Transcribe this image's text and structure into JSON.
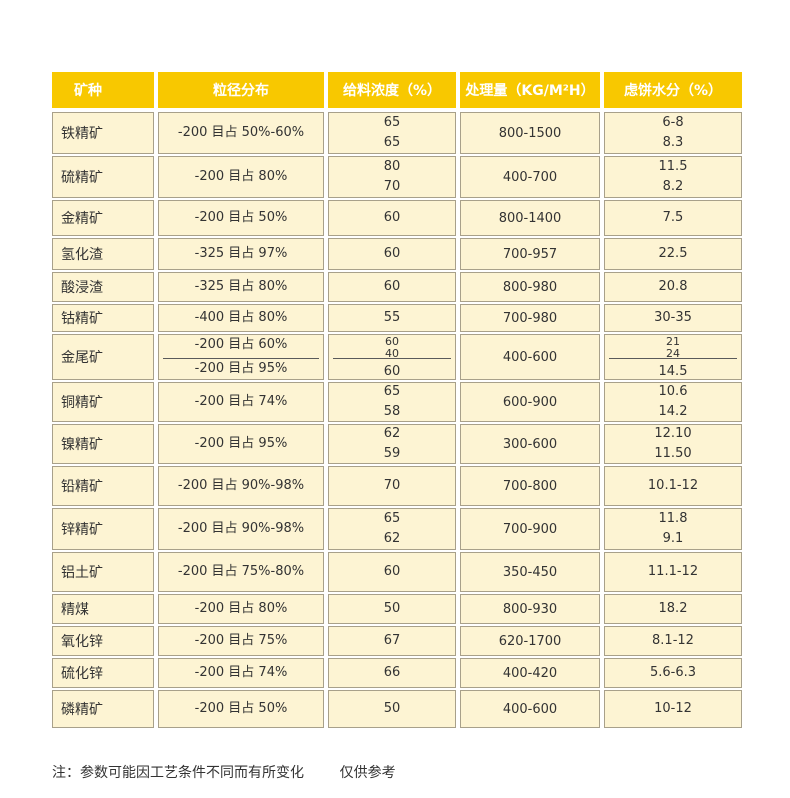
{
  "headers": {
    "mineral": "矿种",
    "particle_size": "粒径分布",
    "feed_concentration": "给料浓度（%）",
    "capacity": "处理量（KG/M²H）",
    "moisture": "虑饼水分（%）"
  },
  "rows": [
    {
      "mineral": "铁精矿",
      "size": [
        "-200 目占 50%-60%"
      ],
      "conc": [
        "65",
        "65"
      ],
      "capacity": "800-1500",
      "moisture": [
        "6-8",
        "8.3"
      ]
    },
    {
      "mineral": "硫精矿",
      "size": [
        "-200 目占 80%"
      ],
      "conc": [
        "80",
        "70"
      ],
      "capacity": "400-700",
      "moisture": [
        "11.5",
        "8.2"
      ]
    },
    {
      "mineral": "金精矿",
      "size": [
        "-200 目占 50%"
      ],
      "conc": [
        "60"
      ],
      "capacity": "800-1400",
      "moisture": [
        "7.5"
      ]
    },
    {
      "mineral": "氢化渣",
      "size": [
        "-325 目占 97%"
      ],
      "conc": [
        "60"
      ],
      "capacity": "700-957",
      "moisture": [
        "22.5"
      ]
    },
    {
      "mineral": "酸浸渣",
      "size": [
        "-325 目占 80%"
      ],
      "conc": [
        "60"
      ],
      "capacity": "800-980",
      "moisture": [
        "20.8"
      ]
    },
    {
      "mineral": "钴精矿",
      "size": [
        "-400 目占 80%"
      ],
      "conc": [
        "55"
      ],
      "capacity": "700-980",
      "moisture": [
        "30-35"
      ]
    },
    {
      "mineral": "金尾矿",
      "size": [
        "-200 目占 60%",
        "-200 目占 95%"
      ],
      "conc": [
        "60",
        "40",
        "60"
      ],
      "capacity": "400-600",
      "moisture": [
        "21",
        "24",
        "14.5"
      ]
    },
    {
      "mineral": "铜精矿",
      "size": [
        "-200 目占 74%"
      ],
      "conc": [
        "65",
        "58"
      ],
      "capacity": "600-900",
      "moisture": [
        "10.6",
        "14.2"
      ]
    },
    {
      "mineral": "镍精矿",
      "size": [
        "-200 目占 95%"
      ],
      "conc": [
        "62",
        "59"
      ],
      "capacity": "300-600",
      "moisture": [
        "12.10",
        "11.50"
      ]
    },
    {
      "mineral": "铅精矿",
      "size": [
        "-200 目占 90%-98%"
      ],
      "conc": [
        "70"
      ],
      "capacity": "700-800",
      "moisture": [
        "10.1-12"
      ]
    },
    {
      "mineral": "锌精矿",
      "size": [
        "-200 目占 90%-98%"
      ],
      "conc": [
        "65",
        "62"
      ],
      "capacity": "700-900",
      "moisture": [
        "11.8",
        "9.1"
      ]
    },
    {
      "mineral": "铝土矿",
      "size": [
        "-200 目占 75%-80%"
      ],
      "conc": [
        "60"
      ],
      "capacity": "350-450",
      "moisture": [
        "11.1-12"
      ]
    },
    {
      "mineral": "精煤",
      "size": [
        "-200 目占 80%"
      ],
      "conc": [
        "50"
      ],
      "capacity": "800-930",
      "moisture": [
        "18.2"
      ]
    },
    {
      "mineral": "氧化锌",
      "size": [
        "-200 目占 75%"
      ],
      "conc": [
        "67"
      ],
      "capacity": "620-1700",
      "moisture": [
        "8.1-12"
      ]
    },
    {
      "mineral": "硫化锌",
      "size": [
        "-200 目占 74%"
      ],
      "conc": [
        "66"
      ],
      "capacity": "400-420",
      "moisture": [
        "5.6-6.3"
      ]
    },
    {
      "mineral": "磷精矿",
      "size": [
        "-200 目占 50%"
      ],
      "conc": [
        "50"
      ],
      "capacity": "400-600",
      "moisture": [
        "10-12"
      ]
    }
  ],
  "footnote": "注：参数可能因工艺条件不同而有所变化        仅供参考",
  "colors": {
    "header_bg": "#f8c800",
    "header_text": "#ffffff",
    "cell_bg": "#fdf4d3",
    "cell_border": "#a8a08a"
  }
}
